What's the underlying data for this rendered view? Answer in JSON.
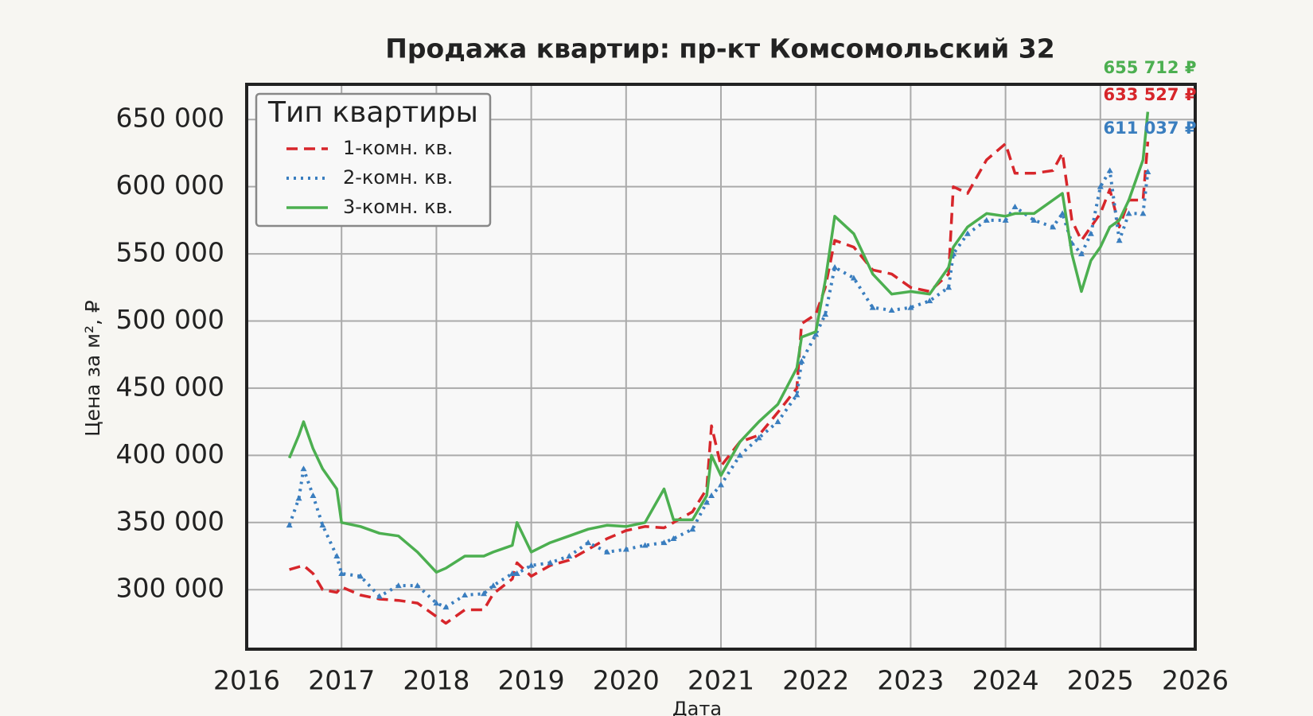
{
  "chart_data": {
    "type": "line",
    "title": "Продажа квартир: пр-кт Комсомольский 32",
    "xlabel": "Дата",
    "ylabel": "Цена за м², ₽",
    "legend_title": "Тип квартиры",
    "legend_loc": "upper left",
    "grid": true,
    "xlim": [
      2016,
      2026
    ],
    "xticks": [
      2016,
      2017,
      2018,
      2019,
      2020,
      2021,
      2022,
      2023,
      2024,
      2025,
      2026
    ],
    "ylim": [
      255700,
      676200
    ],
    "yticks": [
      {
        "value": 300000,
        "label": "300 000"
      },
      {
        "value": 350000,
        "label": "350 000"
      },
      {
        "value": 400000,
        "label": "400 000"
      },
      {
        "value": 450000,
        "label": "450 000"
      },
      {
        "value": 500000,
        "label": "500 000"
      },
      {
        "value": 550000,
        "label": "550 000"
      },
      {
        "value": 600000,
        "label": "600 000"
      },
      {
        "value": 650000,
        "label": "650 000"
      }
    ],
    "x": [
      2016.45,
      2016.55,
      2016.6,
      2016.7,
      2016.8,
      2016.95,
      2017.0,
      2017.2,
      2017.4,
      2017.6,
      2017.8,
      2018.0,
      2018.1,
      2018.3,
      2018.5,
      2018.6,
      2018.8,
      2018.85,
      2019.0,
      2019.2,
      2019.4,
      2019.6,
      2019.8,
      2020.0,
      2020.2,
      2020.4,
      2020.5,
      2020.7,
      2020.85,
      2020.9,
      2021.0,
      2021.2,
      2021.4,
      2021.6,
      2021.8,
      2021.85,
      2022.0,
      2022.1,
      2022.2,
      2022.4,
      2022.6,
      2022.8,
      2023.0,
      2023.2,
      2023.4,
      2023.45,
      2023.6,
      2023.8,
      2024.0,
      2024.1,
      2024.3,
      2024.5,
      2024.6,
      2024.7,
      2024.8,
      2024.9,
      2025.0,
      2025.1,
      2025.2,
      2025.3,
      2025.45,
      2025.5
    ],
    "series": [
      {
        "name": "1-комн. кв.",
        "color": "#d7262b",
        "linestyle": "dashed",
        "marker": "none",
        "last_label": "633 527 ₽",
        "values": [
          315000,
          317000,
          318000,
          312000,
          300000,
          298000,
          302000,
          296000,
          293000,
          292000,
          290000,
          280000,
          275000,
          285000,
          285000,
          297000,
          308000,
          320000,
          310000,
          318000,
          322000,
          330000,
          338000,
          344000,
          347000,
          346000,
          350000,
          358000,
          375000,
          422000,
          392000,
          410000,
          415000,
          432000,
          450000,
          498000,
          505000,
          525000,
          560000,
          555000,
          538000,
          535000,
          525000,
          522000,
          535000,
          600000,
          595000,
          620000,
          632000,
          610000,
          610000,
          612000,
          625000,
          575000,
          560000,
          570000,
          580000,
          598000,
          570000,
          590000,
          590000,
          633527
        ]
      },
      {
        "name": "2-комн. кв.",
        "color": "#3a7ebf",
        "linestyle": "dotted",
        "marker": "triangle",
        "last_label": "611 037 ₽",
        "values": [
          348000,
          368000,
          390000,
          370000,
          348000,
          325000,
          312000,
          310000,
          295000,
          303000,
          303000,
          290000,
          287000,
          296000,
          297000,
          303000,
          312000,
          312000,
          318000,
          320000,
          325000,
          335000,
          328000,
          330000,
          333000,
          335000,
          338000,
          345000,
          365000,
          370000,
          378000,
          400000,
          413000,
          425000,
          445000,
          470000,
          490000,
          505000,
          540000,
          532000,
          510000,
          508000,
          510000,
          515000,
          525000,
          550000,
          565000,
          575000,
          575000,
          585000,
          575000,
          570000,
          580000,
          558000,
          550000,
          565000,
          600000,
          612000,
          560000,
          580000,
          580000,
          611037
        ]
      },
      {
        "name": "3-комн. кв.",
        "color": "#4caf50",
        "linestyle": "solid",
        "marker": "none",
        "last_label": "655 712 ₽",
        "values": [
          398000,
          415000,
          425000,
          405000,
          390000,
          375000,
          350000,
          347000,
          342000,
          340000,
          328000,
          313000,
          316000,
          325000,
          325000,
          328000,
          333000,
          350000,
          328000,
          335000,
          340000,
          345000,
          348000,
          347000,
          350000,
          375000,
          352000,
          352000,
          370000,
          400000,
          385000,
          410000,
          425000,
          438000,
          465000,
          488000,
          492000,
          530000,
          578000,
          565000,
          535000,
          520000,
          522000,
          520000,
          540000,
          555000,
          570000,
          580000,
          578000,
          580000,
          580000,
          590000,
          595000,
          550000,
          522000,
          545000,
          555000,
          570000,
          575000,
          590000,
          620000,
          655712
        ]
      }
    ]
  }
}
